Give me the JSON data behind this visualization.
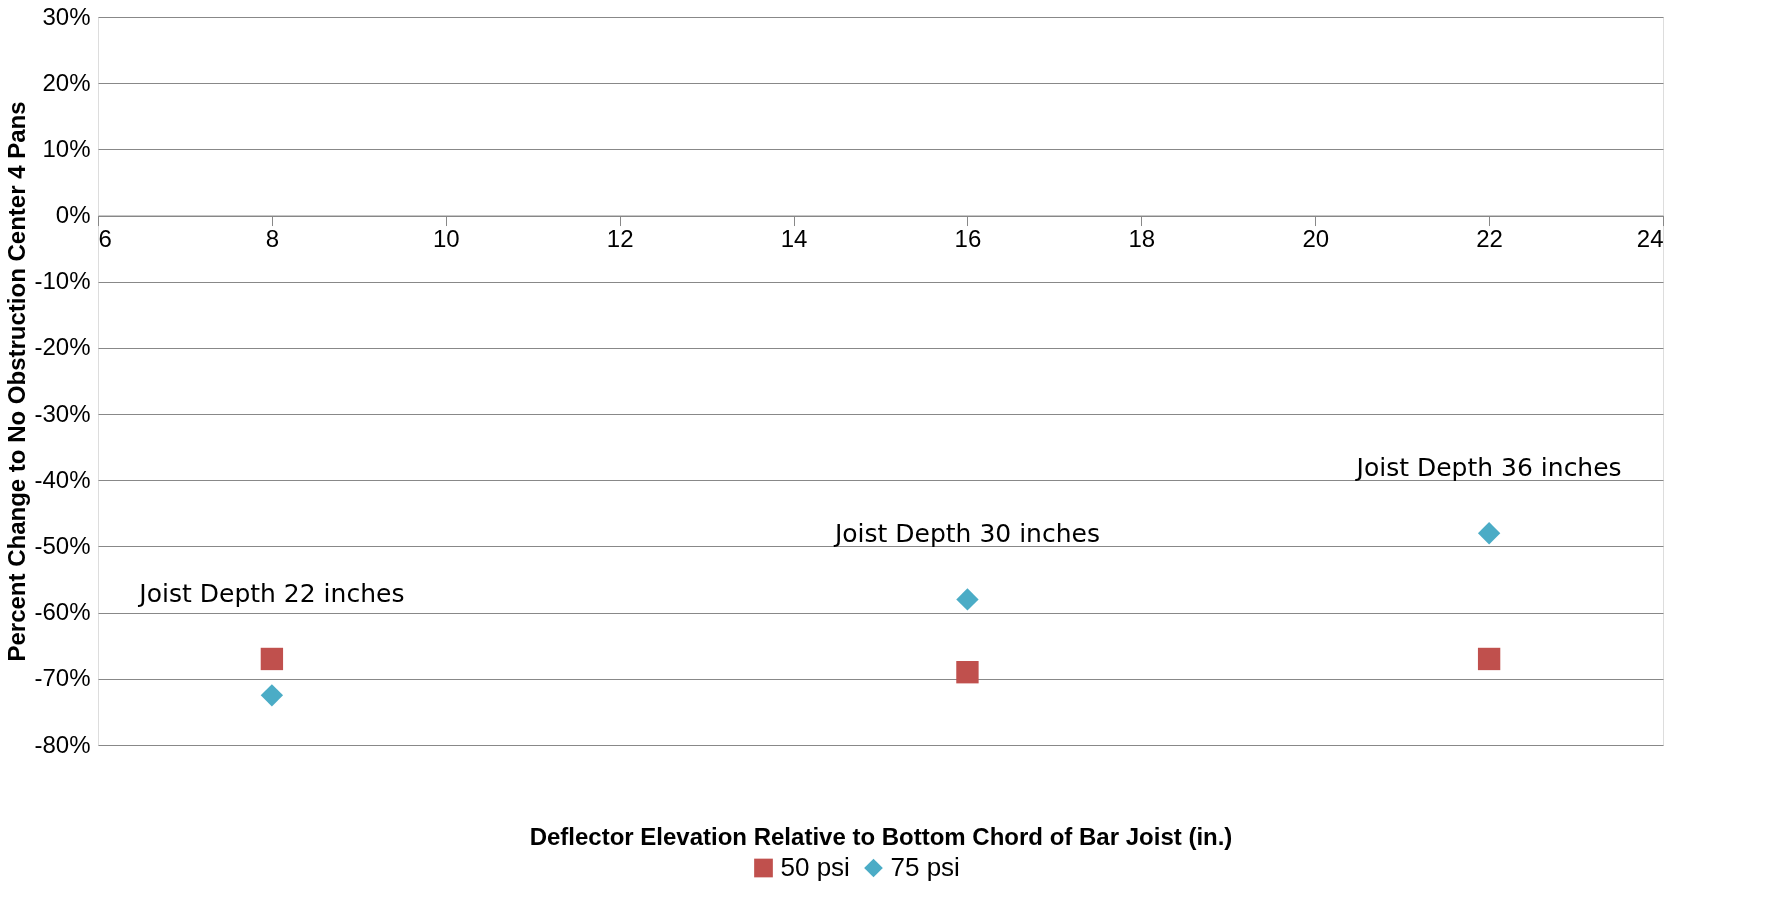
{
  "chart_data": {
    "type": "scatter",
    "xlabel": "Deflector Elevation Relative to Bottom Chord of Bar Joist (in.)",
    "ylabel": "Percent Change to No Obstruction Center 4 Pans",
    "x": [
      8,
      16,
      22
    ],
    "series": [
      {
        "name": "50 psi",
        "color": "#c0504d",
        "marker": "square",
        "values": [
          -67,
          -69,
          -67
        ]
      },
      {
        "name": "75 psi",
        "color": "#4bacc6",
        "marker": "diamond",
        "values": [
          -72.5,
          -58,
          -48
        ]
      }
    ],
    "xlim": [
      6,
      24
    ],
    "xticks": [
      6,
      8,
      10,
      12,
      14,
      16,
      18,
      20,
      22,
      24
    ],
    "ylim": [
      -80,
      30
    ],
    "yticks": [
      {
        "value": -80,
        "label": "-80%"
      },
      {
        "value": -70,
        "label": "-70%"
      },
      {
        "value": -60,
        "label": "-60%"
      },
      {
        "value": -50,
        "label": "-50%"
      },
      {
        "value": -40,
        "label": "-40%"
      },
      {
        "value": -30,
        "label": "-30%"
      },
      {
        "value": -20,
        "label": "-20%"
      },
      {
        "value": -10,
        "label": "-10%"
      },
      {
        "value": 0,
        "label": "0%"
      },
      {
        "value": 10,
        "label": "10%"
      },
      {
        "value": 20,
        "label": "20%"
      },
      {
        "value": 30,
        "label": "30%"
      }
    ],
    "annotations": [
      "Joist Depth 22 inches",
      "Joist Depth 30 inches",
      "Joist Depth 36 inches"
    ],
    "grid": "y",
    "legend": "bottom"
  }
}
